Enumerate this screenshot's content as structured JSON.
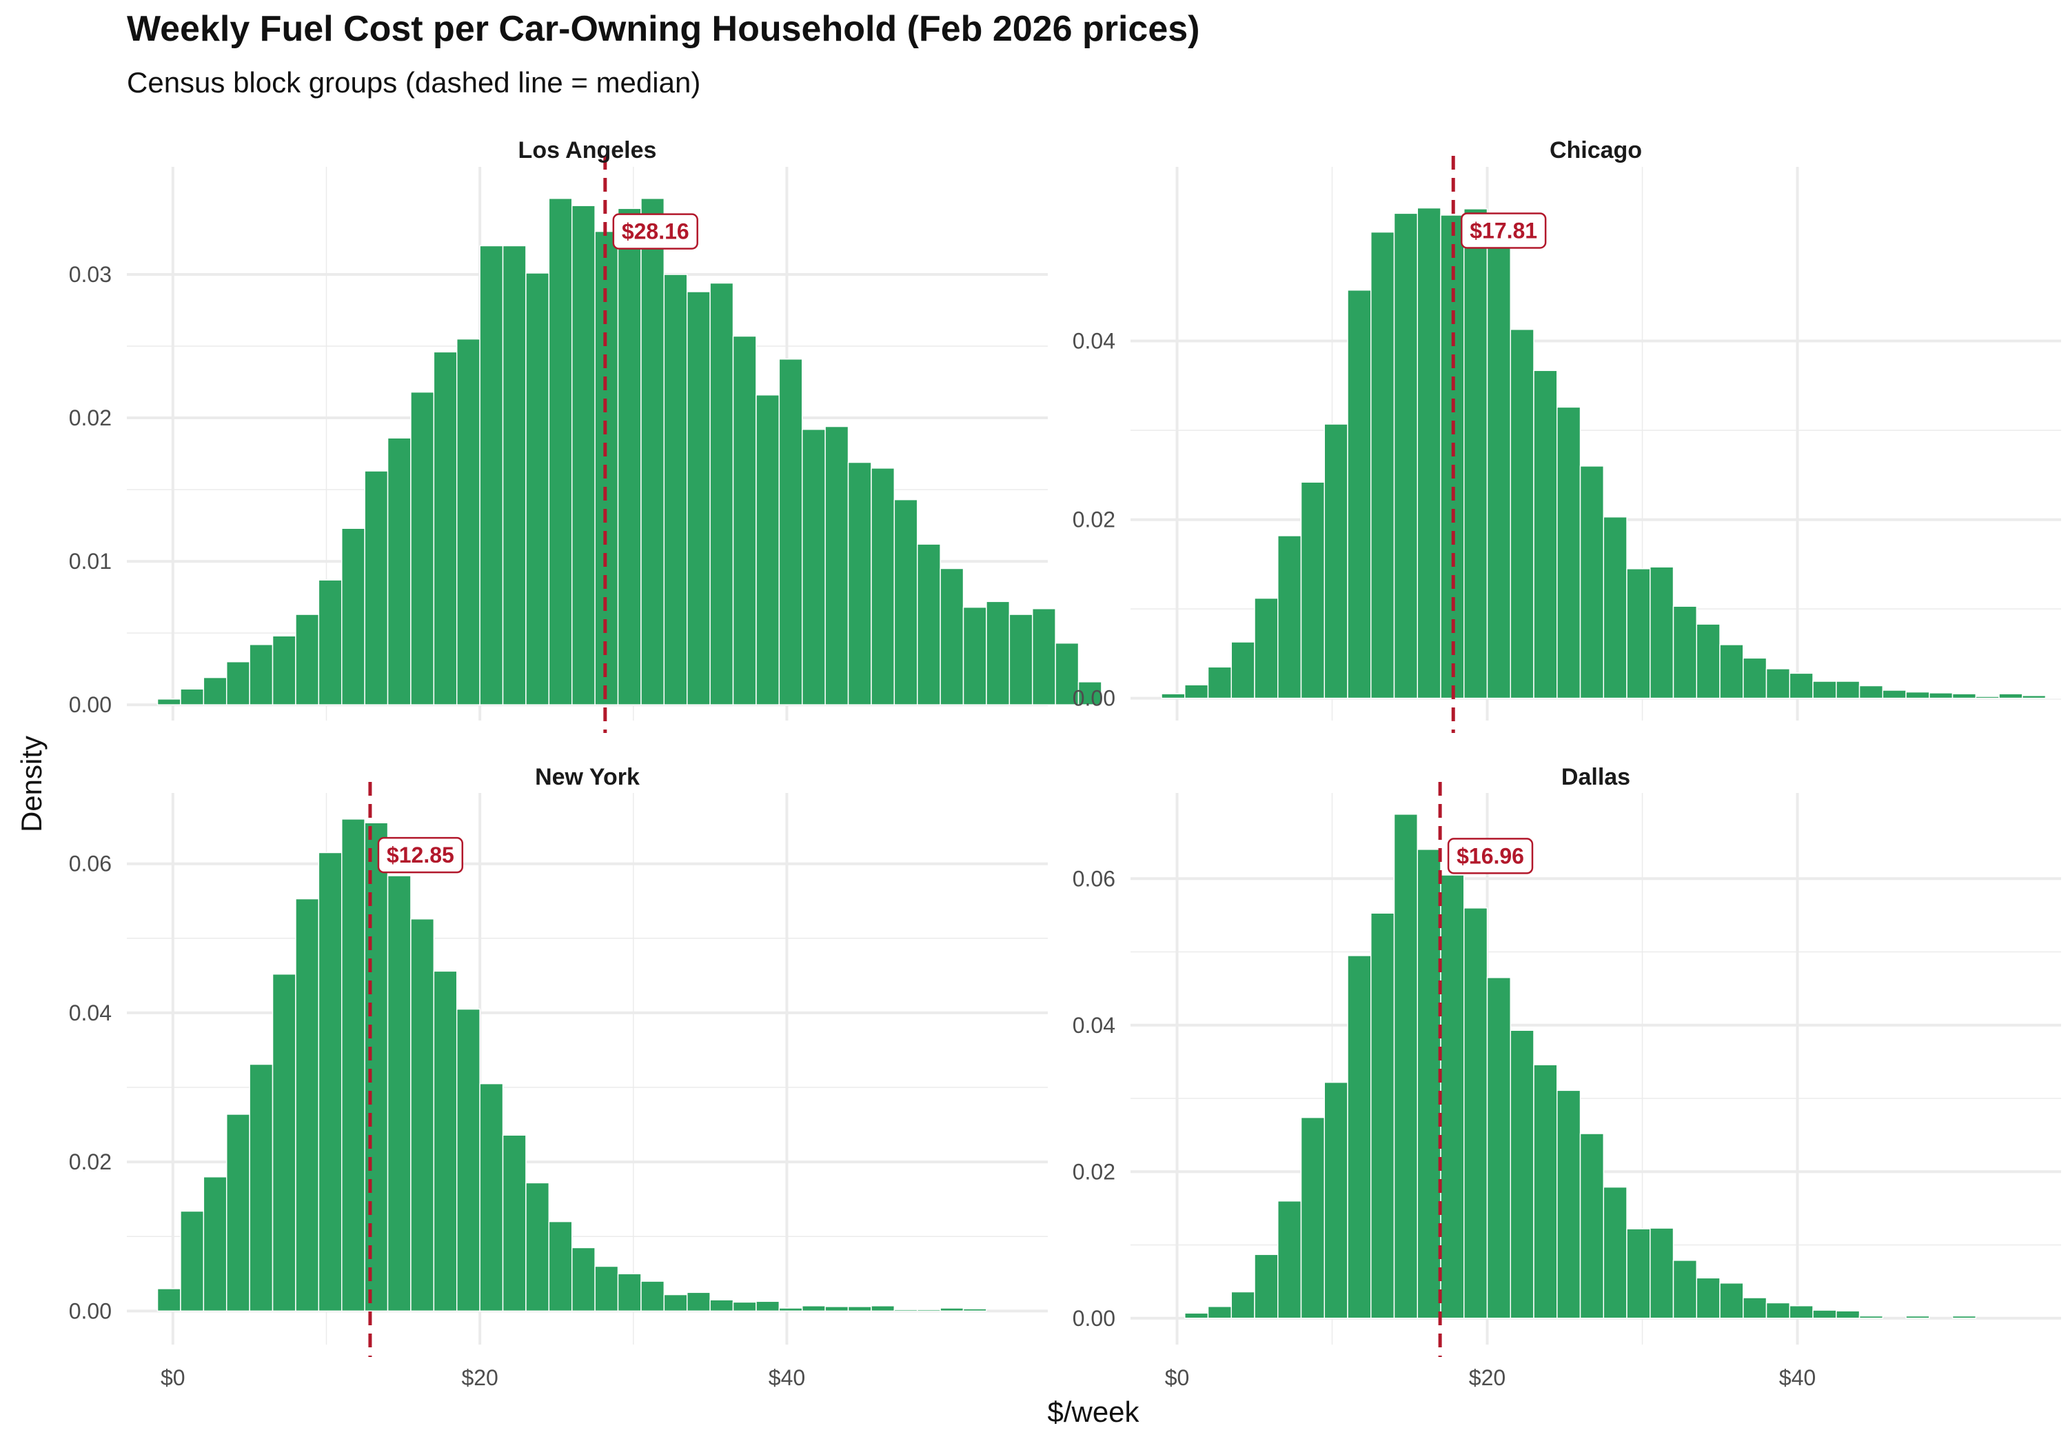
{
  "title": "Weekly Fuel Cost per Car-Owning Household (Feb 2026 prices)",
  "subtitle": "Census block groups (dashed line = median)",
  "colors": {
    "bar": "#2ca25f",
    "bar_edge": "#ffffff",
    "median": "#b2182b",
    "grid": "#ebebeb",
    "tick_text": "#4d4d4d"
  },
  "chart_data": {
    "type": "bar",
    "subtype": "histogram-facets",
    "xlabel": "$/week",
    "ylabel": "Density",
    "bin_start": -1,
    "bin_width": 1.5,
    "xlim": [
      -3,
      57
    ],
    "x_ticks": [
      0,
      20,
      40
    ],
    "x_tick_labels": [
      "$0",
      "$20",
      "$40"
    ],
    "panels": [
      {
        "name": "Los Angeles",
        "median": 28.16,
        "median_label": "$28.16",
        "ylim": [
          -0.0011,
          0.0375
        ],
        "y_ticks": [
          0,
          0.01,
          0.02,
          0.03
        ],
        "y_tick_labels": [
          "0.00",
          "0.01",
          "0.02",
          "0.03"
        ],
        "values": [
          0.0004,
          0.0011,
          0.0019,
          0.003,
          0.0042,
          0.0048,
          0.0063,
          0.0087,
          0.0123,
          0.0163,
          0.0186,
          0.0218,
          0.0246,
          0.0255,
          0.032,
          0.032,
          0.0301,
          0.0353,
          0.0348,
          0.033,
          0.0346,
          0.0353,
          0.03,
          0.0288,
          0.0294,
          0.0257,
          0.0216,
          0.0241,
          0.0192,
          0.0194,
          0.0169,
          0.0165,
          0.0143,
          0.0112,
          0.0095,
          0.0068,
          0.0072,
          0.0063,
          0.0067,
          0.0043,
          0.0016
        ]
      },
      {
        "name": "Chicago",
        "median": 17.81,
        "median_label": "$17.81",
        "ylim": [
          -0.0025,
          0.0595
        ],
        "y_ticks": [
          0,
          0.02,
          0.04
        ],
        "y_tick_labels": [
          "0.00",
          "0.02",
          "0.04"
        ],
        "values": [
          0.0005,
          0.0015,
          0.0035,
          0.0063,
          0.0112,
          0.0182,
          0.0242,
          0.0307,
          0.0457,
          0.0522,
          0.0543,
          0.0549,
          0.0541,
          0.0548,
          0.0517,
          0.0413,
          0.0367,
          0.0326,
          0.026,
          0.0203,
          0.0145,
          0.0147,
          0.0103,
          0.0083,
          0.006,
          0.0045,
          0.0033,
          0.0028,
          0.0019,
          0.0019,
          0.0014,
          0.0009,
          0.0007,
          0.0006,
          0.0005,
          0.0002,
          0.0005,
          0.0003,
          0.0001
        ]
      },
      {
        "name": "New York",
        "median": 12.85,
        "median_label": "$12.85",
        "ylim": [
          -0.0045,
          0.0695
        ],
        "y_ticks": [
          0,
          0.02,
          0.04,
          0.06
        ],
        "y_tick_labels": [
          "0.00",
          "0.02",
          "0.04",
          "0.06"
        ],
        "values": [
          0.003,
          0.0134,
          0.018,
          0.0264,
          0.0331,
          0.0452,
          0.0553,
          0.0615,
          0.066,
          0.0655,
          0.0584,
          0.0526,
          0.0456,
          0.0405,
          0.0305,
          0.0236,
          0.0172,
          0.012,
          0.0085,
          0.006,
          0.005,
          0.004,
          0.0022,
          0.0025,
          0.0015,
          0.0012,
          0.0013,
          0.0004,
          0.0007,
          0.0006,
          0.0006,
          0.0007,
          0.0002,
          0.0002,
          0.0004,
          0.0003,
          0,
          0,
          0,
          0,
          0.0001
        ]
      },
      {
        "name": "Dallas",
        "median": 16.96,
        "median_label": "$16.96",
        "ylim": [
          -0.0036,
          0.0717
        ],
        "y_ticks": [
          0,
          0.02,
          0.04,
          0.06
        ],
        "y_tick_labels": [
          "0.00",
          "0.02",
          "0.04",
          "0.06"
        ],
        "values": [
          0,
          0.0007,
          0.0016,
          0.0036,
          0.0087,
          0.016,
          0.0274,
          0.0322,
          0.0495,
          0.0553,
          0.0688,
          0.064,
          0.0605,
          0.056,
          0.0465,
          0.0393,
          0.0346,
          0.0311,
          0.0252,
          0.0179,
          0.0122,
          0.0123,
          0.0079,
          0.0055,
          0.0048,
          0.0028,
          0.0021,
          0.0017,
          0.0011,
          0.001,
          0.0003,
          0,
          0.0003,
          0,
          0.0003
        ]
      }
    ]
  }
}
